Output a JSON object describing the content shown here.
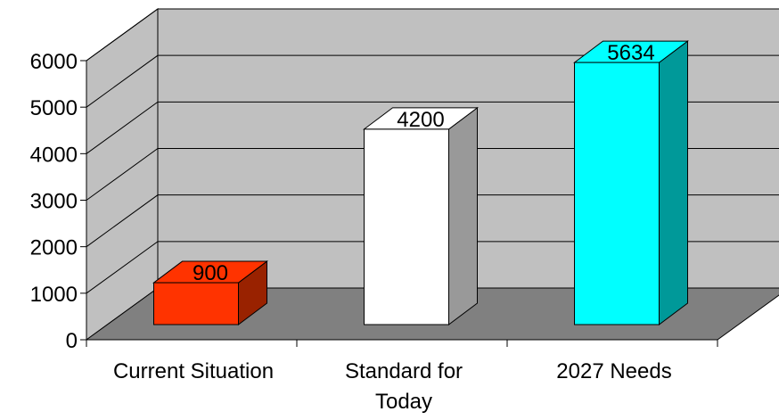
{
  "chart_data": {
    "type": "bar",
    "style": "3d-column",
    "categories": [
      "Current Situation",
      "Standard for Today",
      "2027 Needs"
    ],
    "category_display_lines": [
      [
        "Current Situation"
      ],
      [
        "Standard for",
        "Today"
      ],
      [
        "2027 Needs"
      ]
    ],
    "values": [
      900,
      4200,
      5634
    ],
    "value_labels": [
      "900",
      "4200",
      "5634"
    ],
    "bar_colors": [
      "#ff3300",
      "#ffffff",
      "#00ffff"
    ],
    "bar_side_colors": [
      "#992200",
      "#999999",
      "#009999"
    ],
    "wall_color": "#c0c0c0",
    "floor_color": "#808080",
    "yticks": [
      "0",
      "1000",
      "2000",
      "3000",
      "4000",
      "5000",
      "6000"
    ],
    "ylim": [
      0,
      6000
    ],
    "grid": true,
    "legend": false,
    "title": "",
    "xlabel": "",
    "ylabel": ""
  }
}
